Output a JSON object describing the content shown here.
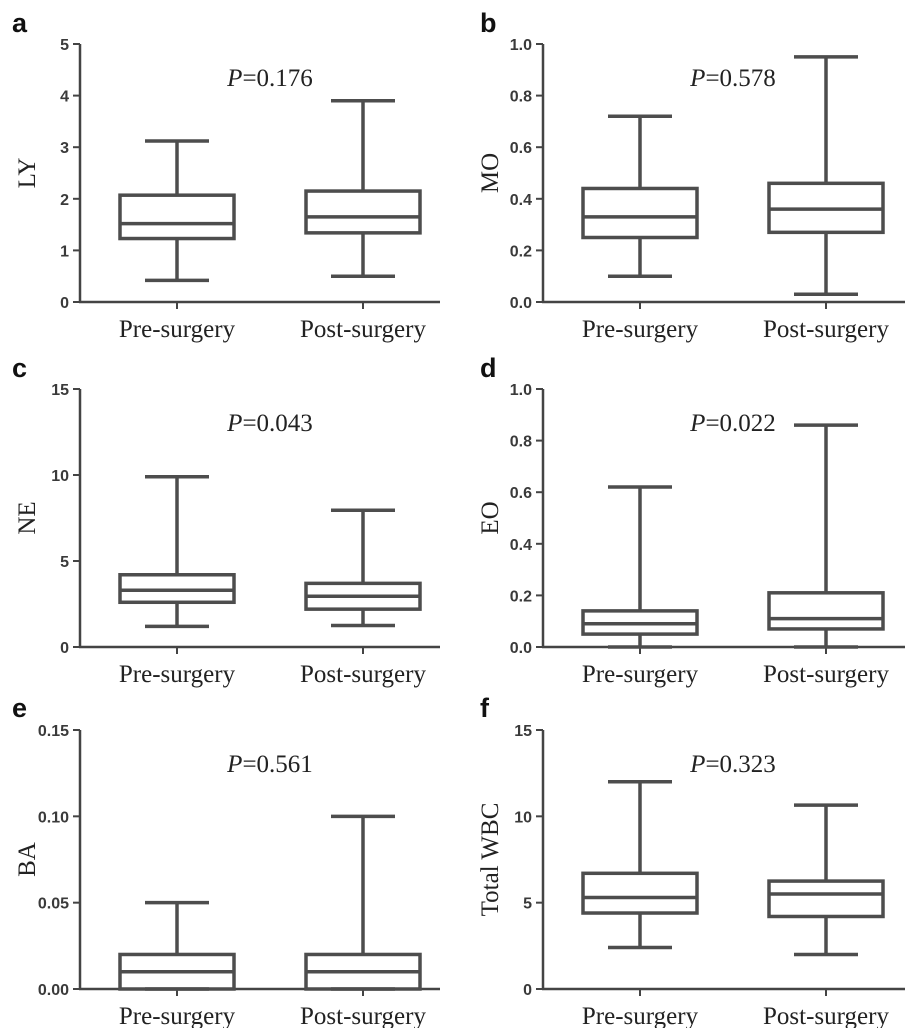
{
  "chart_data": [
    {
      "type": "box",
      "panel": "a",
      "ylabel": "LY",
      "p_label": "P",
      "p_value": "=0.176",
      "ylim": [
        0,
        5
      ],
      "yticks": [
        0,
        1,
        2,
        3,
        4,
        5
      ],
      "ytick_labels": [
        "0",
        "1",
        "2",
        "3",
        "4",
        "5"
      ],
      "categories": [
        "Pre-surgery",
        "Post-surgery"
      ],
      "boxes": [
        {
          "min": 0.42,
          "q1": 1.23,
          "median": 1.52,
          "q3": 2.07,
          "max": 3.12
        },
        {
          "min": 0.5,
          "q1": 1.34,
          "median": 1.65,
          "q3": 2.15,
          "max": 3.9
        }
      ]
    },
    {
      "type": "box",
      "panel": "b",
      "ylabel": "MO",
      "p_label": "P",
      "p_value": "=0.578",
      "ylim": [
        0,
        1.0
      ],
      "yticks": [
        0,
        0.2,
        0.4,
        0.6,
        0.8,
        1.0
      ],
      "ytick_labels": [
        "0.0",
        "0.2",
        "0.4",
        "0.6",
        "0.8",
        "1.0"
      ],
      "categories": [
        "Pre-surgery",
        "Post-surgery"
      ],
      "boxes": [
        {
          "min": 0.1,
          "q1": 0.25,
          "median": 0.33,
          "q3": 0.44,
          "max": 0.72
        },
        {
          "min": 0.03,
          "q1": 0.27,
          "median": 0.36,
          "q3": 0.46,
          "max": 0.95
        }
      ]
    },
    {
      "type": "box",
      "panel": "c",
      "ylabel": "NE",
      "p_label": "P",
      "p_value": "=0.043",
      "ylim": [
        0,
        15
      ],
      "yticks": [
        0,
        5,
        10,
        15
      ],
      "ytick_labels": [
        "0",
        "5",
        "10",
        "15"
      ],
      "categories": [
        "Pre-surgery",
        "Post-surgery"
      ],
      "boxes": [
        {
          "min": 1.2,
          "q1": 2.6,
          "median": 3.3,
          "q3": 4.2,
          "max": 9.9
        },
        {
          "min": 1.25,
          "q1": 2.2,
          "median": 2.95,
          "q3": 3.7,
          "max": 7.95
        }
      ]
    },
    {
      "type": "box",
      "panel": "d",
      "ylabel": "EO",
      "p_label": "P",
      "p_value": "=0.022",
      "ylim": [
        0,
        1.0
      ],
      "yticks": [
        0,
        0.2,
        0.4,
        0.6,
        0.8,
        1.0
      ],
      "ytick_labels": [
        "0.0",
        "0.2",
        "0.4",
        "0.6",
        "0.8",
        "1.0"
      ],
      "categories": [
        "Pre-surgery",
        "Post-surgery"
      ],
      "boxes": [
        {
          "min": 0.0,
          "q1": 0.05,
          "median": 0.09,
          "q3": 0.14,
          "max": 0.62
        },
        {
          "min": 0.0,
          "q1": 0.07,
          "median": 0.11,
          "q3": 0.21,
          "max": 0.86
        }
      ]
    },
    {
      "type": "box",
      "panel": "e",
      "ylabel": "BA",
      "p_label": "P",
      "p_value": "=0.561",
      "ylim": [
        0,
        0.15
      ],
      "yticks": [
        0,
        0.05,
        0.1,
        0.15
      ],
      "ytick_labels": [
        "0.00",
        "0.05",
        "0.10",
        "0.15"
      ],
      "categories": [
        "Pre-surgery",
        "Post-surgery"
      ],
      "boxes": [
        {
          "min": 0.0,
          "q1": 0.0,
          "median": 0.01,
          "q3": 0.02,
          "max": 0.05
        },
        {
          "min": 0.0,
          "q1": 0.0,
          "median": 0.01,
          "q3": 0.02,
          "max": 0.1
        }
      ]
    },
    {
      "type": "box",
      "panel": "f",
      "ylabel": "Total WBC",
      "p_label": "P",
      "p_value": "=0.323",
      "ylim": [
        0,
        15
      ],
      "yticks": [
        0,
        5,
        10,
        15
      ],
      "ytick_labels": [
        "0",
        "5",
        "10",
        "15"
      ],
      "categories": [
        "Pre-surgery",
        "Post-surgery"
      ],
      "boxes": [
        {
          "min": 2.4,
          "q1": 4.4,
          "median": 5.3,
          "q3": 6.7,
          "max": 12.0
        },
        {
          "min": 2.0,
          "q1": 4.2,
          "median": 5.5,
          "q3": 6.25,
          "max": 10.65
        }
      ]
    }
  ]
}
